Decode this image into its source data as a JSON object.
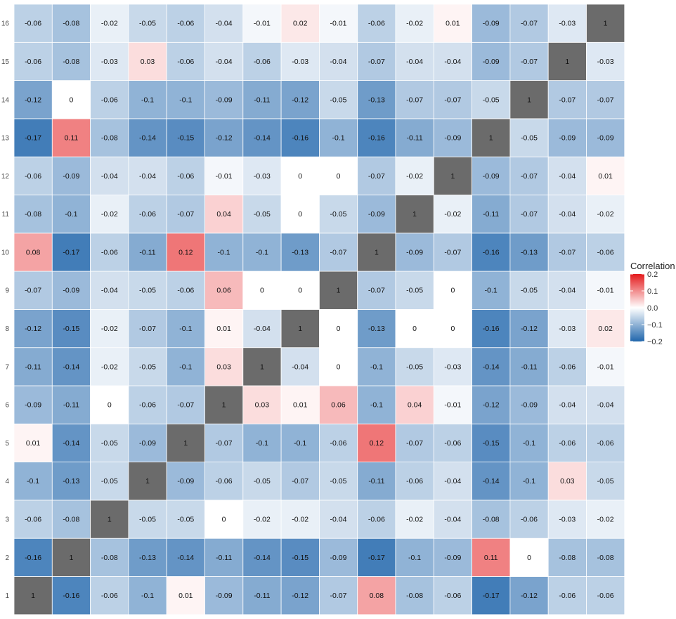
{
  "chart_data": {
    "type": "heatmap",
    "title": "",
    "xlabel": "",
    "ylabel": "",
    "x_categories": [
      "1",
      "2",
      "3",
      "4",
      "5",
      "6",
      "7",
      "8",
      "9",
      "10",
      "11",
      "12",
      "13",
      "14",
      "15",
      "16"
    ],
    "y_categories": [
      "1",
      "2",
      "3",
      "4",
      "5",
      "6",
      "7",
      "8",
      "9",
      "10",
      "11",
      "12",
      "13",
      "14",
      "15",
      "16"
    ],
    "rows": [
      [
        1,
        -0.16,
        -0.06,
        -0.1,
        0.01,
        -0.09,
        -0.11,
        -0.12,
        -0.07,
        0.08,
        -0.08,
        -0.06,
        -0.17,
        -0.12,
        -0.06,
        -0.06
      ],
      [
        -0.16,
        1,
        -0.08,
        -0.13,
        -0.14,
        -0.11,
        -0.14,
        -0.15,
        -0.09,
        -0.17,
        -0.1,
        -0.09,
        0.11,
        0,
        -0.08,
        -0.08
      ],
      [
        -0.06,
        -0.08,
        1,
        -0.05,
        -0.05,
        0,
        -0.02,
        -0.02,
        -0.04,
        -0.06,
        -0.02,
        -0.04,
        -0.08,
        -0.06,
        -0.03,
        -0.02
      ],
      [
        -0.1,
        -0.13,
        -0.05,
        1,
        -0.09,
        -0.06,
        -0.05,
        -0.07,
        -0.05,
        -0.11,
        -0.06,
        -0.04,
        -0.14,
        -0.1,
        0.03,
        -0.05
      ],
      [
        0.01,
        -0.14,
        -0.05,
        -0.09,
        1,
        -0.07,
        -0.1,
        -0.1,
        -0.06,
        0.12,
        -0.07,
        -0.06,
        -0.15,
        -0.1,
        -0.06,
        -0.06
      ],
      [
        -0.09,
        -0.11,
        0,
        -0.06,
        -0.07,
        1,
        0.03,
        0.01,
        0.06,
        -0.1,
        0.04,
        -0.01,
        -0.12,
        -0.09,
        -0.04,
        -0.04
      ],
      [
        -0.11,
        -0.14,
        -0.02,
        -0.05,
        -0.1,
        0.03,
        1,
        -0.04,
        0,
        -0.1,
        -0.05,
        -0.03,
        -0.14,
        -0.11,
        -0.06,
        -0.01
      ],
      [
        -0.12,
        -0.15,
        -0.02,
        -0.07,
        -0.1,
        0.01,
        -0.04,
        1,
        0,
        -0.13,
        0,
        0,
        -0.16,
        -0.12,
        -0.03,
        0.02
      ],
      [
        -0.07,
        -0.09,
        -0.04,
        -0.05,
        -0.06,
        0.06,
        0,
        0,
        1,
        -0.07,
        -0.05,
        0,
        -0.1,
        -0.05,
        -0.04,
        -0.01
      ],
      [
        0.08,
        -0.17,
        -0.06,
        -0.11,
        0.12,
        -0.1,
        -0.1,
        -0.13,
        -0.07,
        1,
        -0.09,
        -0.07,
        -0.16,
        -0.13,
        -0.07,
        -0.06
      ],
      [
        -0.08,
        -0.1,
        -0.02,
        -0.06,
        -0.07,
        0.04,
        -0.05,
        0,
        -0.05,
        -0.09,
        1,
        -0.02,
        -0.11,
        -0.07,
        -0.04,
        -0.02
      ],
      [
        -0.06,
        -0.09,
        -0.04,
        -0.04,
        -0.06,
        -0.01,
        -0.03,
        0,
        0,
        -0.07,
        -0.02,
        1,
        -0.09,
        -0.07,
        -0.04,
        0.01
      ],
      [
        -0.17,
        0.11,
        -0.08,
        -0.14,
        -0.15,
        -0.12,
        -0.14,
        -0.16,
        -0.1,
        -0.16,
        -0.11,
        -0.09,
        1,
        -0.05,
        -0.09,
        -0.09
      ],
      [
        -0.12,
        0,
        -0.06,
        -0.1,
        -0.1,
        -0.09,
        -0.11,
        -0.12,
        -0.05,
        -0.13,
        -0.07,
        -0.07,
        -0.05,
        1,
        -0.07,
        -0.07
      ],
      [
        -0.06,
        -0.08,
        -0.03,
        0.03,
        -0.06,
        -0.04,
        -0.06,
        -0.03,
        -0.04,
        -0.07,
        -0.04,
        -0.04,
        -0.09,
        -0.07,
        1,
        -0.03
      ],
      [
        -0.06,
        -0.08,
        -0.02,
        -0.05,
        -0.06,
        -0.04,
        -0.01,
        0.02,
        -0.01,
        -0.06,
        -0.02,
        0.01,
        -0.09,
        -0.07,
        -0.03,
        1
      ]
    ],
    "color_scale": {
      "low": -0.2,
      "mid": 0.0,
      "high": 0.2,
      "low_color": "#2166ac",
      "mid_color": "#ffffff",
      "high_color": "#e41a1c",
      "diagonal_color": "#6b6b6b"
    },
    "legend": {
      "title": "Correlation",
      "position": "right",
      "ticks": [
        0.2,
        0.1,
        0.0,
        -0.1,
        -0.2
      ],
      "tick_labels": [
        "0.2",
        "0.1",
        "0.0",
        "−0.1",
        "−0.2"
      ]
    },
    "grid": false
  }
}
